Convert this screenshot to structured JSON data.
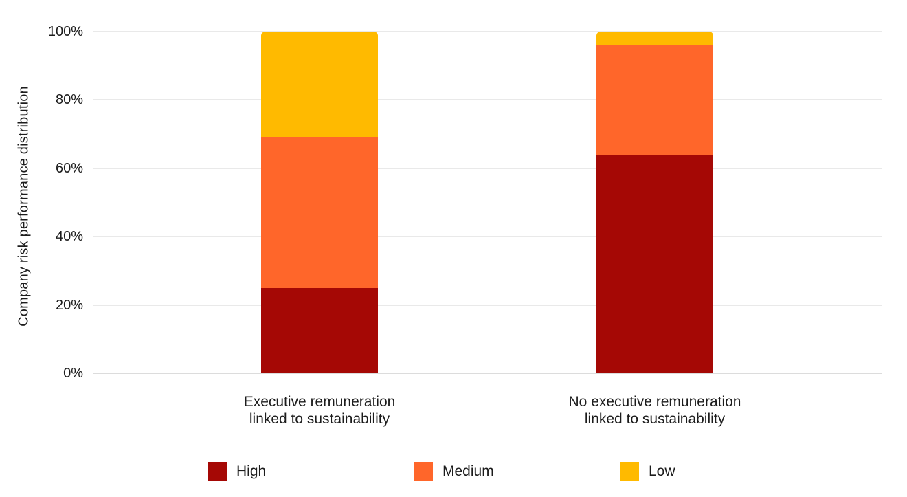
{
  "chart_data": {
    "type": "bar",
    "stacked": true,
    "orientation": "vertical",
    "ylabel": "Company risk performance distribution",
    "categories": [
      "Executive remuneration\nlinked to sustainability",
      "No executive remuneration\nlinked to sustainability"
    ],
    "series": [
      {
        "name": "High",
        "color": "#a50805",
        "values": [
          25,
          64
        ]
      },
      {
        "name": "Medium",
        "color": "#ff662a",
        "values": [
          44,
          32
        ]
      },
      {
        "name": "Low",
        "color": "#ffba00",
        "values": [
          31,
          4
        ]
      }
    ],
    "yticks": [
      {
        "value": 0,
        "label": "0%"
      },
      {
        "value": 20,
        "label": "20%"
      },
      {
        "value": 40,
        "label": "40%"
      },
      {
        "value": 60,
        "label": "60%"
      },
      {
        "value": 80,
        "label": "80%"
      },
      {
        "value": 100,
        "label": "100%"
      }
    ],
    "ylim": [
      0,
      100
    ],
    "grid": true,
    "legend_position": "bottom",
    "colors": {
      "gridline": "#e9e9e9",
      "baseline": "#dcdcdc",
      "text": "#1c1c1c",
      "background": "#ffffff"
    }
  }
}
